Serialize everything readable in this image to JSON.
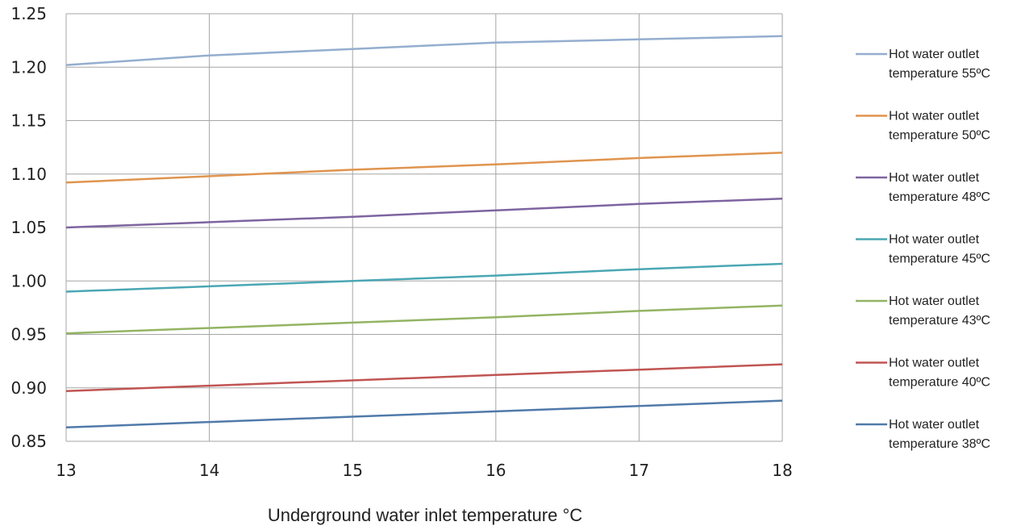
{
  "chart_data": {
    "type": "line",
    "title": "",
    "xlabel": "Underground water inlet temperature °C",
    "ylabel": "",
    "x": [
      13,
      14,
      15,
      16,
      17,
      18
    ],
    "xlim": [
      13,
      18
    ],
    "ylim": [
      0.85,
      1.25
    ],
    "x_ticks": [
      "13",
      "14",
      "15",
      "16",
      "17",
      "18"
    ],
    "y_ticks": [
      "0.85",
      "0.90",
      "0.95",
      "1.00",
      "1.05",
      "1.10",
      "1.15",
      "1.20",
      "1.25"
    ],
    "grid": true,
    "legend_position": "right",
    "series": [
      {
        "name_line1": "Hot water outlet",
        "name_line2": "temperature 55ºC",
        "color": "#94aecf",
        "values": [
          1.202,
          1.211,
          1.217,
          1.223,
          1.226,
          1.229
        ]
      },
      {
        "name_line1": "Hot water outlet",
        "name_line2": "temperature 50ºC",
        "color": "#e0944f",
        "values": [
          1.092,
          1.098,
          1.104,
          1.109,
          1.115,
          1.12
        ]
      },
      {
        "name_line1": "Hot water outlet",
        "name_line2": "temperature 48ºC",
        "color": "#7e64a0",
        "values": [
          1.05,
          1.055,
          1.06,
          1.066,
          1.072,
          1.077
        ]
      },
      {
        "name_line1": "Hot water outlet",
        "name_line2": "temperature 45ºC",
        "color": "#4aa7b4",
        "values": [
          0.99,
          0.995,
          1.0,
          1.005,
          1.011,
          1.016
        ]
      },
      {
        "name_line1": "Hot water outlet",
        "name_line2": "temperature 43ºC",
        "color": "#93b463",
        "values": [
          0.951,
          0.956,
          0.961,
          0.966,
          0.972,
          0.977
        ]
      },
      {
        "name_line1": "Hot water outlet",
        "name_line2": "temperature 40ºC",
        "color": "#c05553",
        "values": [
          0.897,
          0.902,
          0.907,
          0.912,
          0.917,
          0.922
        ]
      },
      {
        "name_line1": "Hot water outlet",
        "name_line2": "temperature 38ºC",
        "color": "#507aaa",
        "values": [
          0.863,
          0.868,
          0.873,
          0.878,
          0.883,
          0.888
        ]
      }
    ]
  }
}
